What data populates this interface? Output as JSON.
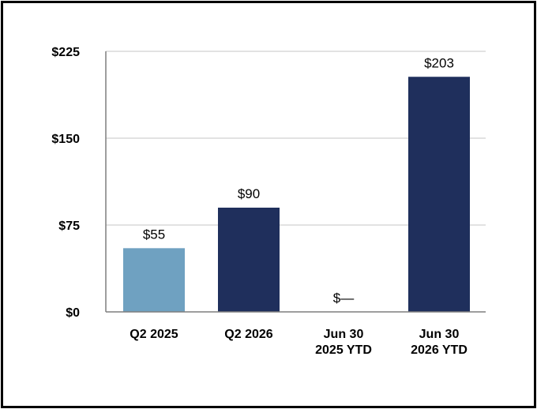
{
  "chart_data": {
    "type": "bar",
    "title": "",
    "xlabel": "",
    "ylabel": "",
    "categories": [
      [
        "Q2 2025"
      ],
      [
        "Q2 2026"
      ],
      [
        "Jun 30",
        "2025 YTD"
      ],
      [
        "Jun 30",
        "2026 YTD"
      ]
    ],
    "values": [
      55,
      90,
      0,
      203
    ],
    "data_labels": [
      "$55",
      "$90",
      "$—",
      "$203"
    ],
    "bar_colors": [
      "#6fa1c1",
      "#1f2f5c",
      "#1f2f5c",
      "#1f2f5c"
    ],
    "ylim": [
      0,
      225
    ],
    "yticks": [
      0,
      75,
      150,
      225
    ],
    "ytick_labels": [
      "$0",
      "$75",
      "$150",
      "$225"
    ],
    "grid": true,
    "grid_color": "#d9d9d9",
    "axis_color": "#7f7f7f"
  }
}
